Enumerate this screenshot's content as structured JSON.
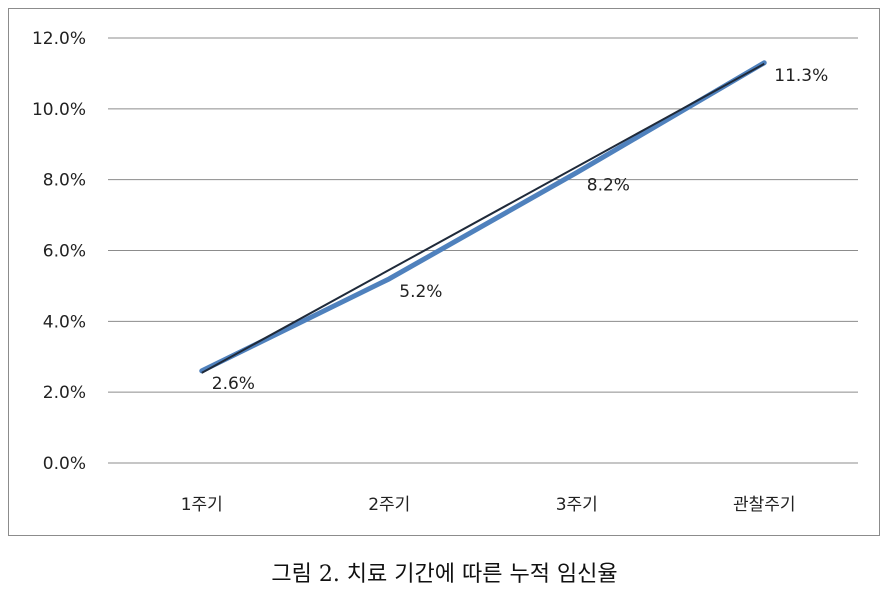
{
  "caption": "그림 2. 치료 기간에 따른 누적 임신율",
  "chart_data": {
    "type": "line",
    "categories": [
      "1주기",
      "2주기",
      "3주기",
      "관찰주기"
    ],
    "series": [
      {
        "values": [
          2.6,
          5.2,
          8.2,
          11.3
        ],
        "data_labels": [
          "2.6%",
          "5.2%",
          "8.2%",
          "11.3%"
        ]
      }
    ],
    "y_ticks": [
      "0.0%",
      "2.0%",
      "4.0%",
      "6.0%",
      "8.0%",
      "10.0%",
      "12.0%"
    ],
    "ylim": [
      0,
      12
    ],
    "grid": true,
    "legend": "none",
    "line_color": "#4f81bd",
    "trend_color": "#1f2a3a"
  }
}
